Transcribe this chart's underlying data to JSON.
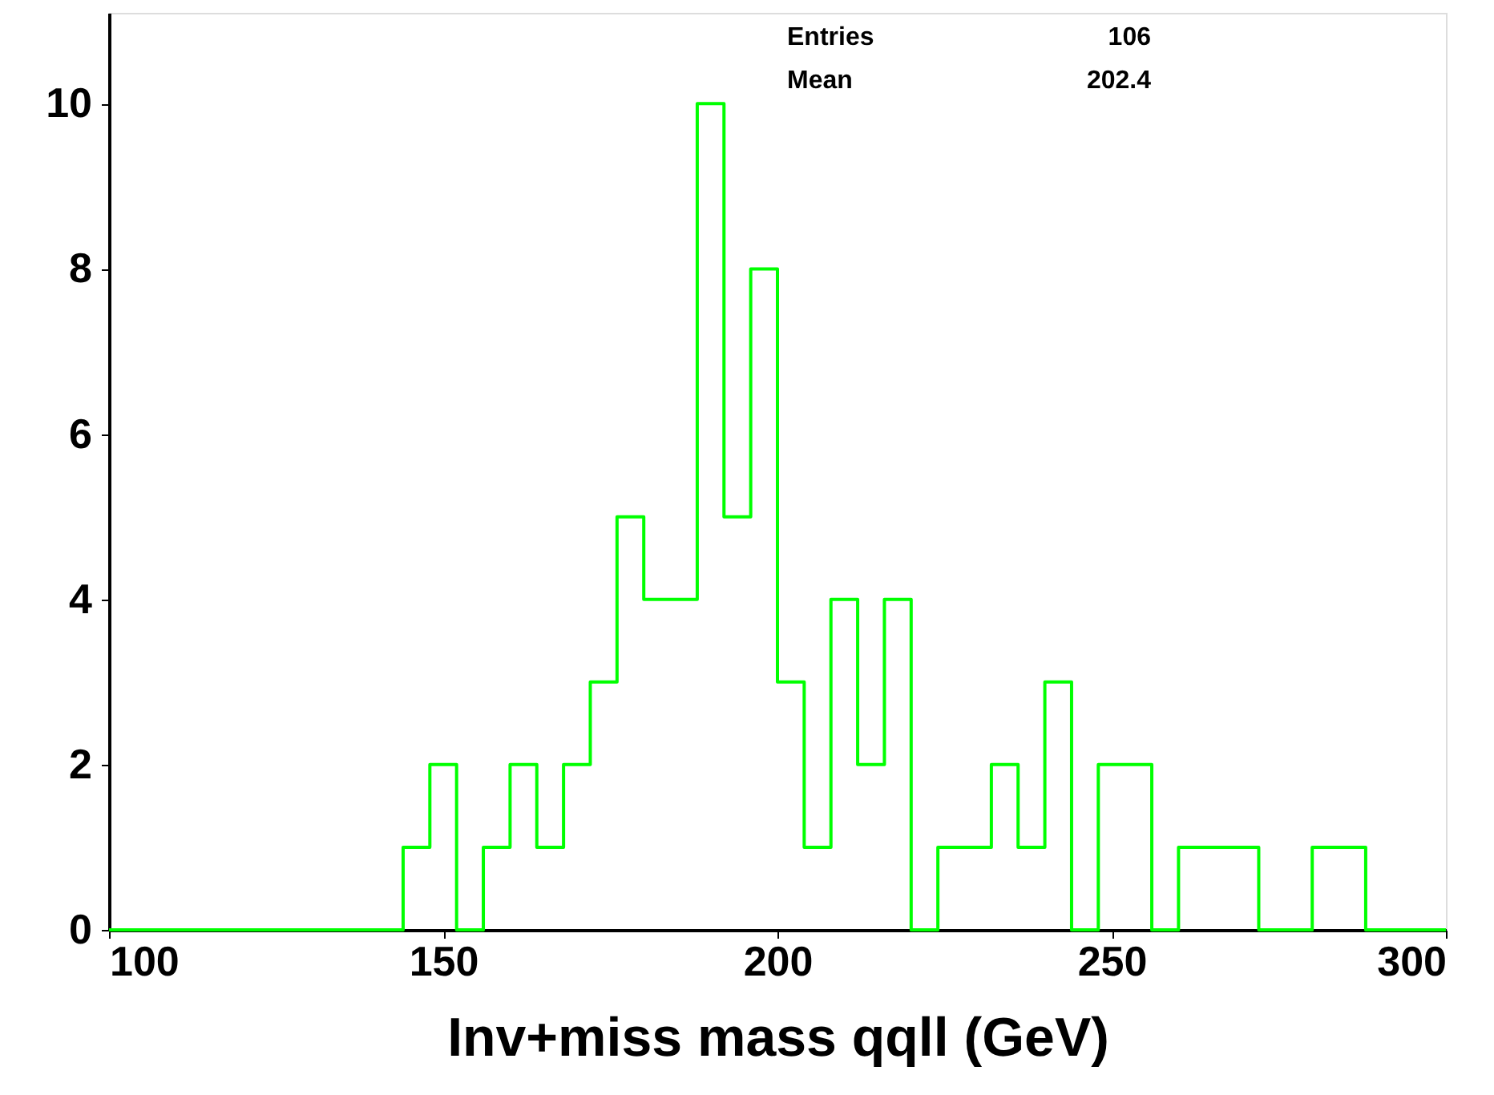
{
  "chart_data": {
    "type": "histogram",
    "xlabel": "Inv+miss mass qqll (GeV)",
    "bins": [
      100,
      104,
      108,
      112,
      116,
      120,
      124,
      128,
      132,
      136,
      140,
      144,
      148,
      152,
      156,
      160,
      164,
      168,
      172,
      176,
      180,
      184,
      188,
      192,
      196,
      200,
      204,
      208,
      212,
      216,
      220,
      224,
      228,
      232,
      236,
      240,
      244,
      248,
      252,
      256,
      260,
      264,
      268,
      272,
      276,
      280,
      284,
      288,
      292,
      296,
      300
    ],
    "values": [
      0,
      0,
      0,
      0,
      0,
      0,
      0,
      0,
      0,
      0,
      0,
      1,
      2,
      0,
      1,
      2,
      1,
      2,
      3,
      5,
      4,
      4,
      10,
      5,
      8,
      3,
      1,
      4,
      2,
      4,
      0,
      1,
      1,
      2,
      1,
      3,
      0,
      2,
      2,
      0,
      1,
      1,
      1,
      0,
      0,
      1,
      1,
      0,
      0,
      0
    ],
    "color": "#00ff00",
    "xlim": [
      100,
      300
    ],
    "xticks": [
      100,
      150,
      200,
      250,
      300
    ],
    "ylim": [
      0,
      11.1
    ],
    "yticks": [
      0,
      2,
      4,
      6,
      8,
      10
    ],
    "grid": false,
    "annotations": [
      "Entries 106",
      "Mean 202.4"
    ]
  }
}
